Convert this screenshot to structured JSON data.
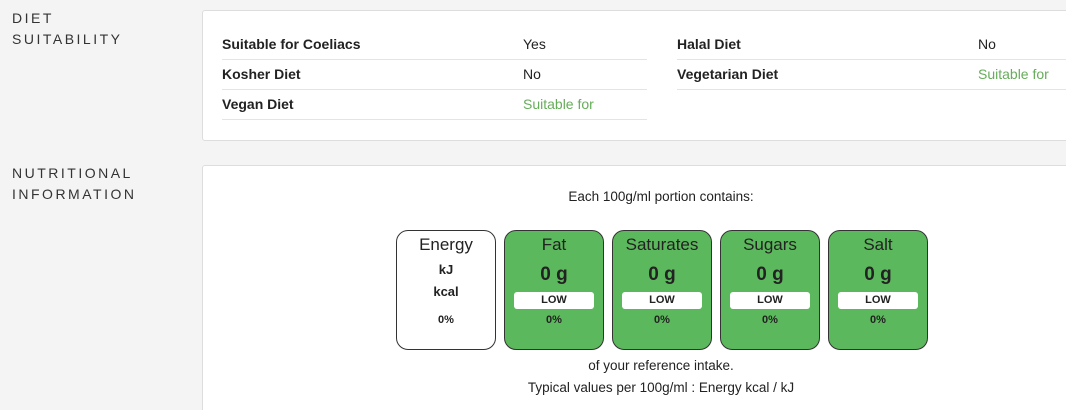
{
  "diet_suitability": {
    "heading": "DIET SUITABILITY",
    "left": [
      {
        "label": "Suitable for Coeliacs",
        "value": "Yes"
      },
      {
        "label": "Kosher Diet",
        "value": "No"
      },
      {
        "label": "Vegan Diet",
        "value": "Suitable for"
      }
    ],
    "right": [
      {
        "label": "Halal Diet",
        "value": "No"
      },
      {
        "label": "Vegetarian Diet",
        "value": "Suitable for"
      }
    ]
  },
  "nutritional_information": {
    "heading": "NUTRITIONAL INFORMATION",
    "intro": "Each 100g/ml portion contains:",
    "energy": {
      "name": "Energy",
      "units": [
        "kJ",
        "kcal"
      ],
      "percent": "0%"
    },
    "nutrients": [
      {
        "name": "Fat",
        "amount": "0 g",
        "level": "LOW",
        "percent": "0%"
      },
      {
        "name": "Saturates",
        "amount": "0 g",
        "level": "LOW",
        "percent": "0%"
      },
      {
        "name": "Sugars",
        "amount": "0 g",
        "level": "LOW",
        "percent": "0%"
      },
      {
        "name": "Salt",
        "amount": "0 g",
        "level": "LOW",
        "percent": "0%"
      }
    ],
    "footer": [
      "of your reference intake.",
      "Typical values per 100g/ml : Energy kcal / kJ"
    ]
  }
}
